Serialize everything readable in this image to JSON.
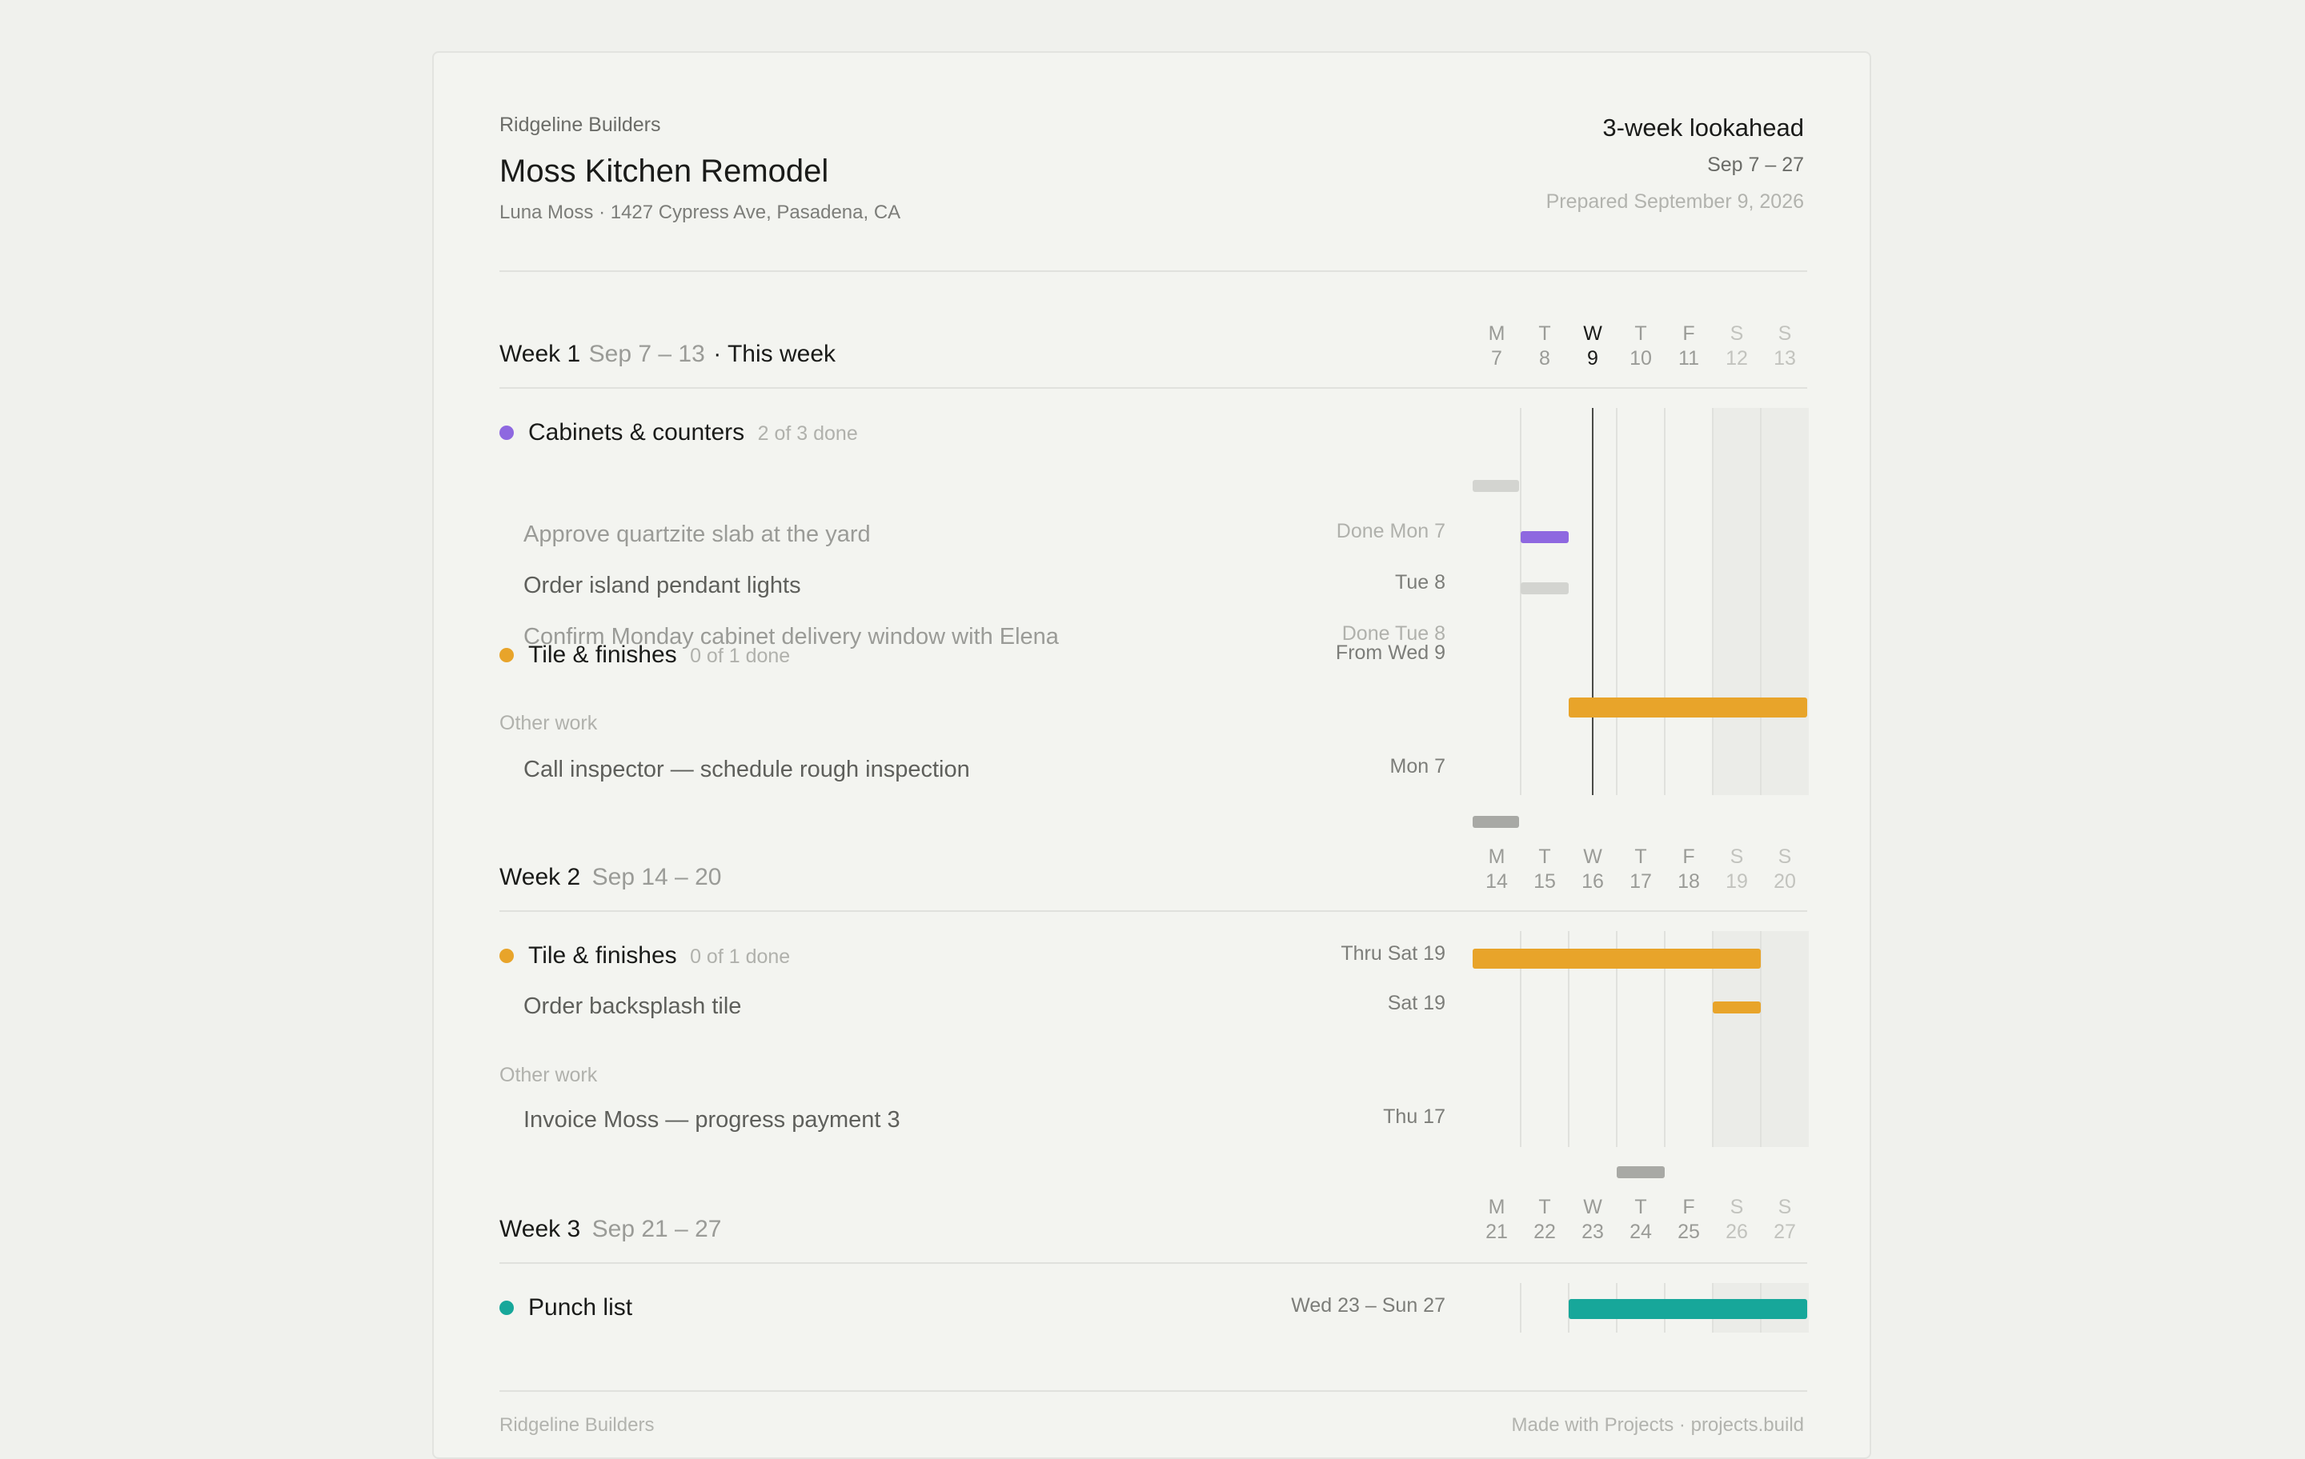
{
  "header": {
    "company": "Ridgeline Builders",
    "project": "Moss Kitchen Remodel",
    "client_address": "Luna Moss · 1427 Cypress Ave, Pasadena, CA",
    "lookahead": "3-week lookahead",
    "range": "Sep 7 – 27",
    "prepared": "Prepared September 9, 2026"
  },
  "day_letters": [
    "M",
    "T",
    "W",
    "T",
    "F",
    "S",
    "S"
  ],
  "colors": {
    "cabinets": "#8e68e0",
    "tile": "#e8a42a",
    "punch": "#17a79a",
    "done_bar": "#d3d4d0",
    "other_bar": "#a8a9a5"
  },
  "weeks": [
    {
      "label": "Week 1",
      "dates": "Sep 7 – 13",
      "note": "· This week",
      "days": [
        "7",
        "8",
        "9",
        "10",
        "11",
        "12",
        "13"
      ],
      "groups": [
        {
          "title": "Cabinets & counters",
          "count": "2 of 3 done",
          "tasks": [
            {
              "name": "Approve quartzite slab at the yard",
              "due": "Done Mon 7"
            },
            {
              "name": "Order island pendant lights",
              "due": "Tue 8"
            },
            {
              "name": "Confirm Monday cabinet delivery window with Elena",
              "due": "Done Tue 8"
            }
          ]
        },
        {
          "title": "Tile & finishes",
          "count": "0 of 1 done",
          "due": "From Wed 9"
        }
      ],
      "other_label": "Other work",
      "other_tasks": [
        {
          "name": "Call inspector — schedule rough inspection",
          "due": "Mon 7"
        }
      ]
    },
    {
      "label": "Week 2",
      "dates": "Sep 14 – 20",
      "days": [
        "14",
        "15",
        "16",
        "17",
        "18",
        "19",
        "20"
      ],
      "groups": [
        {
          "title": "Tile & finishes",
          "count": "0 of 1 done",
          "due": "Thru Sat 19",
          "tasks": [
            {
              "name": "Order backsplash tile",
              "due": "Sat 19"
            }
          ]
        }
      ],
      "other_label": "Other work",
      "other_tasks": [
        {
          "name": "Invoice Moss — progress payment 3",
          "due": "Thu 17"
        }
      ]
    },
    {
      "label": "Week 3",
      "dates": "Sep 21 – 27",
      "days": [
        "21",
        "22",
        "23",
        "24",
        "25",
        "26",
        "27"
      ],
      "groups": [
        {
          "title": "Punch list",
          "due": "Wed 23 – Sun 27"
        }
      ]
    }
  ],
  "footer": {
    "left": "Ridgeline Builders",
    "right": "Made with Projects · projects.build"
  }
}
